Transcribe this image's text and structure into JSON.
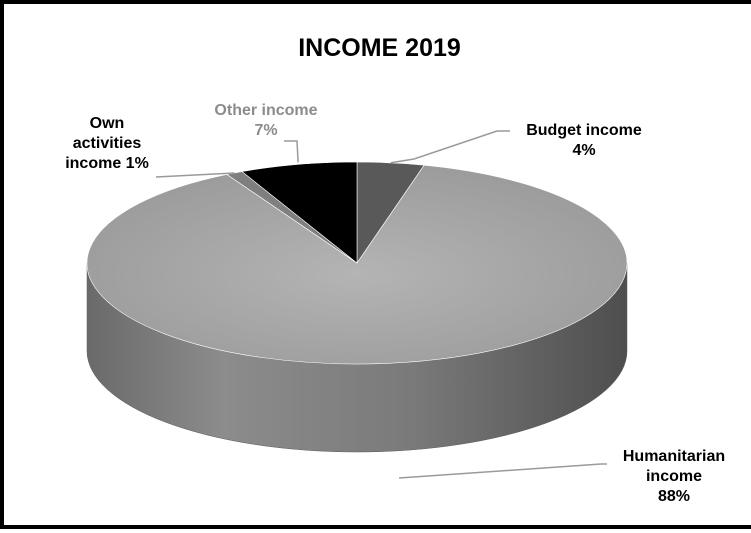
{
  "chart_data": {
    "type": "pie",
    "title": "INCOME 2019",
    "slices": [
      {
        "label": "Budget income",
        "value": 4,
        "display": "Budget income\n4%",
        "color": "#595959"
      },
      {
        "label": "Humanitarian income",
        "value": 88,
        "display": "Humanitarian\nincome\n88%",
        "color": "#a6a6a6"
      },
      {
        "label": "Own activities income",
        "value": 1,
        "display": "Own\nactivities\nincome 1%",
        "color": "#7f7f7f"
      },
      {
        "label": "Other income",
        "value": 7,
        "display": "Other income\n7%",
        "color": "#000000"
      }
    ]
  }
}
